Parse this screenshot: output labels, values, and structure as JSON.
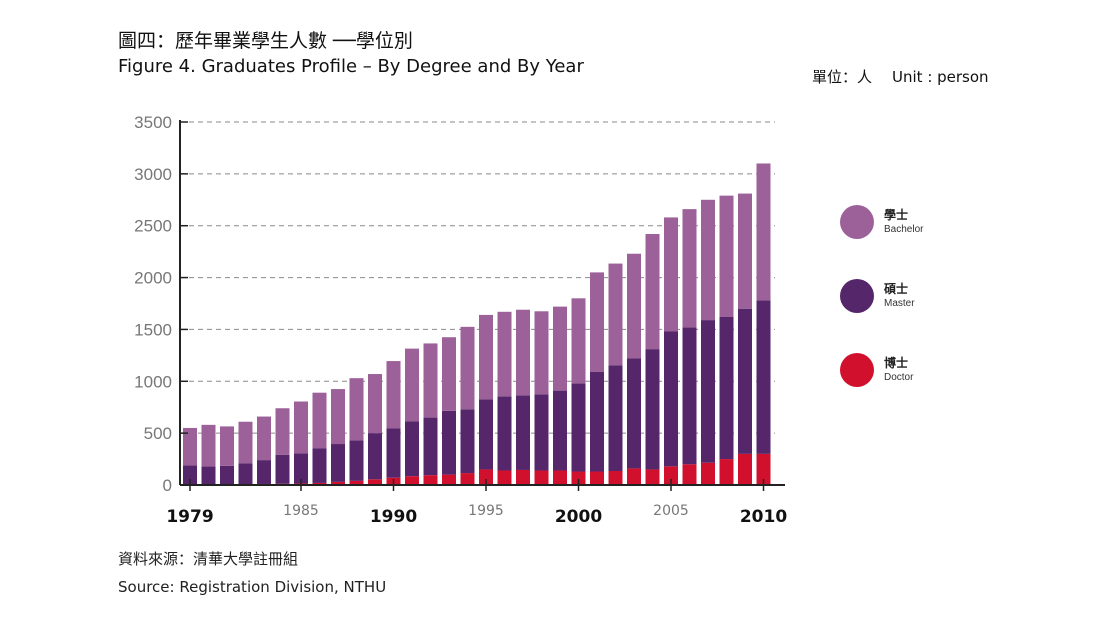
{
  "header": {
    "title_zh": "圖四：歷年畢業學生人數 ──學位別",
    "title_en": "Figure 4. Graduates Profile – By Degree and By Year",
    "unit_zh": "單位：人",
    "unit_en": "Unit : person"
  },
  "footer": {
    "source_zh": "資料來源：清華大學註冊組",
    "source_en": "Source: Registration Division, NTHU"
  },
  "colors": {
    "bachelor": "#9c6199",
    "master": "#55266a",
    "doctor": "#d1102e",
    "axis": "#222222",
    "grid": "#8a8a8a",
    "tick_label": "#777777"
  },
  "legend": [
    {
      "zh": "學士",
      "en": "Bachelor"
    },
    {
      "zh": "碩士",
      "en": "Master"
    },
    {
      "zh": "博士",
      "en": "Doctor"
    }
  ],
  "chart_data": {
    "type": "bar",
    "stacked": true,
    "categories": [
      1979,
      1980,
      1981,
      1982,
      1983,
      1984,
      1985,
      1986,
      1987,
      1988,
      1989,
      1990,
      1991,
      1992,
      1993,
      1994,
      1995,
      1996,
      1997,
      1998,
      1999,
      2000,
      2001,
      2002,
      2003,
      2004,
      2005,
      2006,
      2007,
      2008,
      2009,
      2010
    ],
    "x_tick_labels": [
      {
        "year": 1979,
        "label": "1979",
        "emphasis": true
      },
      {
        "year": 1985,
        "label": "1985",
        "emphasis": false
      },
      {
        "year": 1990,
        "label": "1990",
        "emphasis": true
      },
      {
        "year": 1995,
        "label": "1995",
        "emphasis": false
      },
      {
        "year": 2000,
        "label": "2000",
        "emphasis": true
      },
      {
        "year": 2005,
        "label": "2005",
        "emphasis": false
      },
      {
        "year": 2010,
        "label": "2010",
        "emphasis": true
      }
    ],
    "y_ticks": [
      0,
      500,
      1000,
      1500,
      2000,
      2500,
      3000,
      3500
    ],
    "ylim": [
      0,
      3500
    ],
    "grid": true,
    "legend_position": "right",
    "series": [
      {
        "name": "博士 Doctor",
        "key": "doctor",
        "values": [
          5,
          5,
          5,
          8,
          10,
          12,
          15,
          20,
          30,
          40,
          55,
          70,
          85,
          95,
          100,
          115,
          150,
          140,
          145,
          140,
          140,
          130,
          130,
          135,
          160,
          150,
          180,
          200,
          215,
          250,
          300,
          300
        ]
      },
      {
        "name": "碩士 Master",
        "key": "master",
        "values": [
          185,
          175,
          180,
          202,
          230,
          278,
          290,
          335,
          365,
          390,
          445,
          475,
          530,
          555,
          615,
          615,
          675,
          715,
          720,
          735,
          770,
          850,
          960,
          1020,
          1060,
          1160,
          1300,
          1320,
          1375,
          1370,
          1400,
          1480
        ]
      },
      {
        "name": "學士 Bachelor",
        "key": "bachelor",
        "values": [
          360,
          400,
          380,
          400,
          420,
          450,
          500,
          535,
          530,
          600,
          570,
          650,
          700,
          715,
          710,
          795,
          815,
          815,
          825,
          800,
          810,
          820,
          960,
          980,
          1010,
          1110,
          1100,
          1140,
          1160,
          1170,
          1110,
          1320
        ]
      }
    ],
    "totals": [
      550,
      580,
      565,
      610,
      660,
      740,
      805,
      890,
      925,
      1030,
      1070,
      1195,
      1315,
      1365,
      1425,
      1525,
      1640,
      1670,
      1690,
      1675,
      1720,
      1800,
      2050,
      2135,
      2230,
      2420,
      2580,
      2660,
      2750,
      2790,
      2810,
      3100
    ]
  }
}
